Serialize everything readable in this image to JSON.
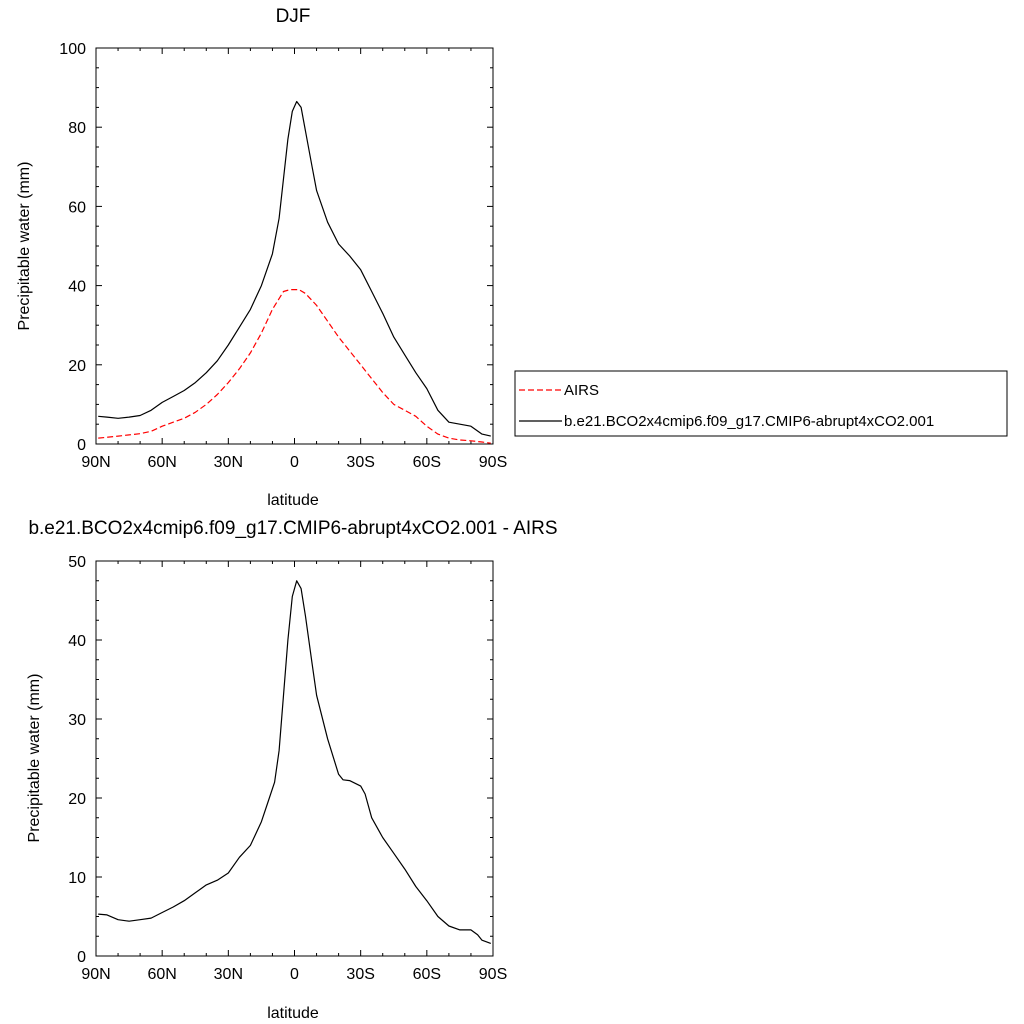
{
  "chart_data": [
    {
      "type": "line",
      "title": "DJF",
      "xlabel": "latitude",
      "ylabel": "Precipitable water (mm)",
      "xlim": [
        90,
        -90
      ],
      "ylim": [
        0,
        100
      ],
      "xticks": [
        {
          "value": 90,
          "label": "90N"
        },
        {
          "value": 60,
          "label": "60N"
        },
        {
          "value": 30,
          "label": "30N"
        },
        {
          "value": 0,
          "label": "0"
        },
        {
          "value": -30,
          "label": "30S"
        },
        {
          "value": -60,
          "label": "60S"
        },
        {
          "value": -90,
          "label": "90S"
        }
      ],
      "yticks": [
        0,
        20,
        40,
        60,
        80,
        100
      ],
      "grid": false,
      "legend_position": "right",
      "series": [
        {
          "name": "AIRS",
          "color": "#ff0000",
          "dash": "dashed",
          "x": [
            89,
            85,
            80,
            75,
            70,
            65,
            60,
            55,
            50,
            45,
            40,
            35,
            30,
            25,
            20,
            15,
            10,
            5,
            2,
            0,
            -2,
            -5,
            -10,
            -15,
            -20,
            -25,
            -30,
            -35,
            -40,
            -45,
            -50,
            -55,
            -60,
            -65,
            -70,
            -75,
            -80,
            -85,
            -89
          ],
          "y": [
            1.5,
            1.7,
            2.0,
            2.3,
            2.6,
            3.2,
            4.5,
            5.5,
            6.5,
            8.0,
            10.0,
            12.5,
            15.5,
            19.0,
            23.0,
            28.0,
            34.0,
            38.5,
            39.0,
            39.0,
            39.0,
            38.0,
            35.0,
            31.0,
            27.0,
            23.5,
            20.0,
            16.5,
            13.0,
            10.0,
            8.5,
            7.0,
            4.5,
            2.5,
            1.5,
            1.0,
            0.8,
            0.5,
            0.2
          ]
        },
        {
          "name": "b.e21.BCO2x4cmip6.f09_g17.CMIP6-abrupt4xCO2.001",
          "color": "#000000",
          "dash": "solid",
          "x": [
            89,
            85,
            80,
            75,
            70,
            65,
            60,
            55,
            50,
            45,
            40,
            35,
            30,
            25,
            20,
            15,
            10,
            7,
            5,
            3,
            1,
            -1,
            -3,
            -5,
            -8,
            -10,
            -15,
            -20,
            -25,
            -30,
            -35,
            -40,
            -45,
            -50,
            -55,
            -60,
            -65,
            -70,
            -75,
            -80,
            -85,
            -89
          ],
          "y": [
            7.0,
            6.8,
            6.5,
            6.8,
            7.2,
            8.5,
            10.5,
            12.0,
            13.5,
            15.5,
            18.0,
            21.0,
            25.0,
            29.5,
            34.0,
            40.0,
            48.0,
            57.0,
            67.0,
            77.0,
            84.0,
            86.5,
            85.0,
            79.0,
            70.0,
            64.0,
            56.0,
            50.5,
            47.5,
            44.0,
            38.5,
            33.0,
            27.0,
            22.5,
            18.0,
            14.0,
            8.5,
            5.5,
            5.0,
            4.5,
            2.5,
            2.0
          ]
        }
      ]
    },
    {
      "type": "line",
      "title": "b.e21.BCO2x4cmip6.f09_g17.CMIP6-abrupt4xCO2.001 - AIRS",
      "xlabel": "latitude",
      "ylabel": "Precipitable water (mm)",
      "xlim": [
        90,
        -90
      ],
      "ylim": [
        0,
        50
      ],
      "xticks": [
        {
          "value": 90,
          "label": "90N"
        },
        {
          "value": 60,
          "label": "60N"
        },
        {
          "value": 30,
          "label": "30N"
        },
        {
          "value": 0,
          "label": "0"
        },
        {
          "value": -30,
          "label": "30S"
        },
        {
          "value": -60,
          "label": "60S"
        },
        {
          "value": -90,
          "label": "90S"
        }
      ],
      "yticks": [
        0,
        10,
        20,
        30,
        40,
        50
      ],
      "grid": false,
      "series": [
        {
          "color": "#000000",
          "dash": "solid",
          "x": [
            89,
            85,
            80,
            75,
            70,
            65,
            60,
            55,
            50,
            45,
            40,
            35,
            30,
            25,
            20,
            15,
            12,
            9,
            7,
            5,
            3,
            1,
            -1,
            -3,
            -5,
            -8,
            -10,
            -15,
            -20,
            -22,
            -25,
            -30,
            -32,
            -35,
            -40,
            -45,
            -50,
            -55,
            -60,
            -65,
            -70,
            -75,
            -78,
            -80,
            -83,
            -85,
            -89
          ],
          "y": [
            5.3,
            5.2,
            4.6,
            4.4,
            4.6,
            4.8,
            5.5,
            6.2,
            7.0,
            8.0,
            9.0,
            9.6,
            10.5,
            12.5,
            14.0,
            17.0,
            19.5,
            22.0,
            26.0,
            33.0,
            40.0,
            45.5,
            47.5,
            46.5,
            43.0,
            37.0,
            33.0,
            27.5,
            23.0,
            22.3,
            22.2,
            21.5,
            20.5,
            17.5,
            15.0,
            13.0,
            11.0,
            8.8,
            7.0,
            5.0,
            3.8,
            3.3,
            3.3,
            3.3,
            2.7,
            2.0,
            1.6
          ]
        }
      ]
    }
  ]
}
